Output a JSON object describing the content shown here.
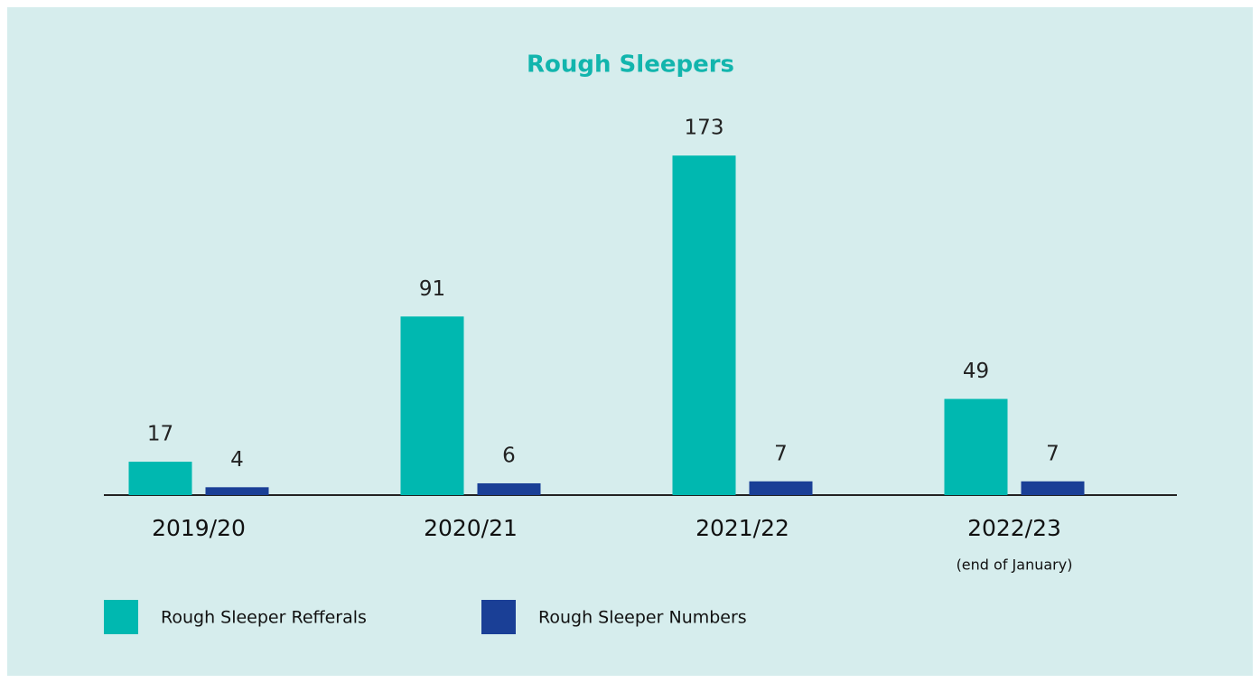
{
  "chart_data": {
    "type": "bar",
    "title": "Rough Sleepers",
    "categories": [
      "2019/20",
      "2020/21",
      "2021/22",
      "2022/23"
    ],
    "annotation": "(end of January)",
    "series": [
      {
        "name": "Rough Sleeper Refferals",
        "color": "#00b8b0",
        "values": [
          17,
          91,
          173,
          49
        ]
      },
      {
        "name": "Rough Sleeper Numbers",
        "color": "#1a3f96",
        "values": [
          4,
          6,
          7,
          7
        ]
      }
    ],
    "ylim": [
      0,
      180
    ]
  }
}
